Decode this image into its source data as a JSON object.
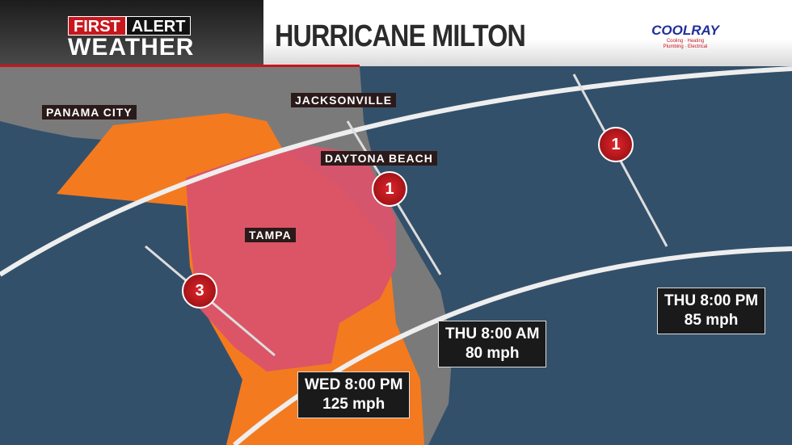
{
  "header": {
    "logo": {
      "first": "FIRST",
      "alert": "ALERT",
      "weather": "WEATHER"
    },
    "title": "HURRICANE MILTON",
    "sponsor": {
      "name": "COOLRAY",
      "tagline1": "Cooling · Heating",
      "tagline2": "Plumbing · Electrical"
    }
  },
  "cities": [
    "PANAMA CITY",
    "JACKSONVILLE",
    "DAYTONA BEACH",
    "TAMPA"
  ],
  "storm_markers": [
    {
      "category": "3"
    },
    {
      "category": "1"
    },
    {
      "category": "1"
    }
  ],
  "forecast_points": [
    {
      "time": "WED 8:00 PM",
      "wind": "125 mph"
    },
    {
      "time": "THU 8:00 AM",
      "wind": "80 mph"
    },
    {
      "time": "THU 8:00 PM",
      "wind": "85 mph"
    }
  ],
  "colors": {
    "ocean": "#33506a",
    "land": "#7a7a7a",
    "tropical_storm_warning": "#f47a1f",
    "hurricane_warning": "#d9536b",
    "brand_red": "#c8161d"
  }
}
